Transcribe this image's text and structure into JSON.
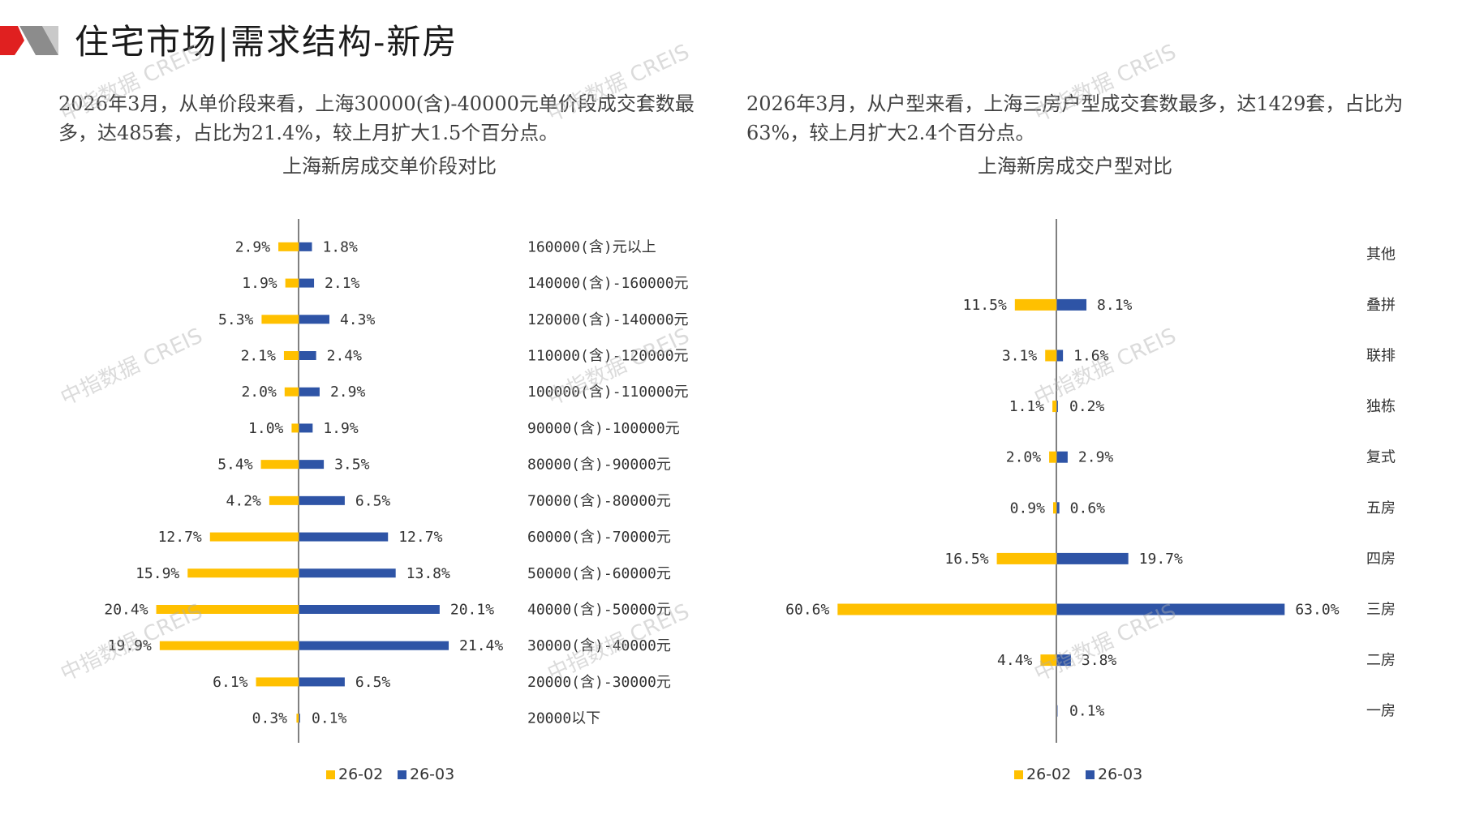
{
  "header": {
    "title": "住宅市场|需求结构-新房",
    "logo_colors": {
      "red": "#e02020",
      "gray": "#8c8c8c"
    }
  },
  "left_panel": {
    "description": "2026年3月，从单价段来看，上海30000(含)-40000元单价段成交套数最多，达485套，占比为21.4%，较上月扩大1.5个百分点。"
  },
  "right_panel": {
    "description": "2026年3月，从户型来看，上海三房户型成交套数最多，达1429套，占比为63%，较上月扩大2.4个百分点。"
  },
  "colors": {
    "series_prev": "#FFC000",
    "series_curr": "#2E54A6",
    "axis": "#808080"
  },
  "watermark": {
    "text": "中指数据 CREIS"
  },
  "chart_data": [
    {
      "type": "bar",
      "orientation": "horizontal-butterfly",
      "title": "上海新房成交单价段对比",
      "unit": "%",
      "categories": [
        "160000(含)元以上",
        "140000(含)-160000元",
        "120000(含)-140000元",
        "110000(含)-120000元",
        "100000(含)-110000元",
        "90000(含)-100000元",
        "80000(含)-90000元",
        "70000(含)-80000元",
        "60000(含)-70000元",
        "50000(含)-60000元",
        "40000(含)-50000元",
        "30000(含)-40000元",
        "20000(含)-30000元",
        "20000以下"
      ],
      "series": [
        {
          "name": "26-02",
          "values": [
            2.9,
            1.9,
            5.3,
            2.1,
            2.0,
            1.0,
            5.4,
            4.2,
            12.7,
            15.9,
            20.4,
            19.9,
            6.1,
            0.3
          ],
          "labels": [
            "2.9%",
            "1.9%",
            "5.3%",
            "2.1%",
            "2.0%",
            "1.0%",
            "5.4%",
            "4.2%",
            "12.7%",
            "15.9%",
            "20.4%",
            "19.9%",
            "6.1%",
            "0.3%"
          ]
        },
        {
          "name": "26-03",
          "values": [
            1.8,
            2.1,
            4.3,
            2.4,
            2.9,
            1.9,
            3.5,
            6.5,
            12.7,
            13.8,
            20.1,
            21.4,
            6.5,
            0.1
          ],
          "labels": [
            "1.8%",
            "2.1%",
            "4.3%",
            "2.4%",
            "2.9%",
            "1.9%",
            "3.5%",
            "6.5%",
            "12.7%",
            "13.8%",
            "20.1%",
            "21.4%",
            "6.5%",
            "0.1%"
          ]
        }
      ],
      "legend": "bottom"
    },
    {
      "type": "bar",
      "orientation": "horizontal-butterfly",
      "title": "上海新房成交户型对比",
      "unit": "%",
      "categories": [
        "其他",
        "叠拼",
        "联排",
        "独栋",
        "复式",
        "五房",
        "四房",
        "三房",
        "二房",
        "一房"
      ],
      "series": [
        {
          "name": "26-02",
          "values": [
            0,
            11.5,
            3.1,
            1.1,
            2.0,
            0.9,
            16.5,
            60.6,
            4.4,
            0
          ],
          "labels": [
            "",
            "11.5%",
            "3.1%",
            "1.1%",
            "2.0%",
            "0.9%",
            "16.5%",
            "60.6%",
            "4.4%",
            ""
          ]
        },
        {
          "name": "26-03",
          "values": [
            0,
            8.1,
            1.6,
            0.2,
            2.9,
            0.6,
            19.7,
            63.0,
            3.8,
            0.1
          ],
          "labels": [
            "",
            "8.1%",
            "1.6%",
            "0.2%",
            "2.9%",
            "0.6%",
            "19.7%",
            "63.0%",
            "3.8%",
            "0.1%"
          ]
        }
      ],
      "legend": "bottom"
    }
  ]
}
